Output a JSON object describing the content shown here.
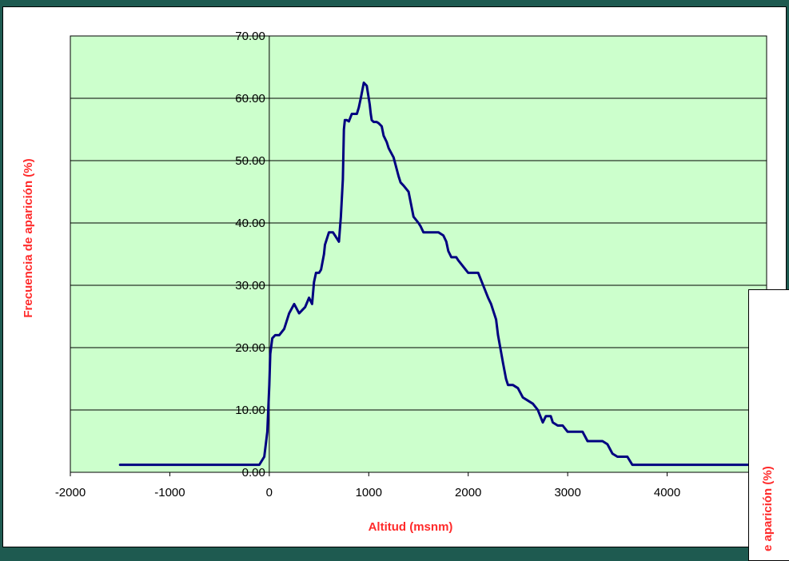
{
  "chart_data": {
    "type": "line",
    "title": "",
    "xlabel": "Altitud (msnm)",
    "ylabel": "Frecuencia de aparición (%)",
    "xlim": [
      -2000,
      5000
    ],
    "ylim": [
      0,
      70
    ],
    "xticks": [
      -2000,
      -1000,
      0,
      1000,
      2000,
      3000,
      4000
    ],
    "xtick_labels": [
      "-2000",
      "-1000",
      "0",
      "1000",
      "2000",
      "3000",
      "4000"
    ],
    "yticks": [
      0,
      10,
      20,
      30,
      40,
      50,
      60,
      70
    ],
    "ytick_labels": [
      "0.00",
      "10.00",
      "20.00",
      "30.00",
      "40.00",
      "50.00",
      "60.00",
      "70.00"
    ],
    "grid": "horizontal",
    "plot_background": "#ccffcc",
    "line_color": "#000080",
    "series": [
      {
        "x": [
          -1500,
          -1000,
          -500,
          -100,
          -50,
          -20,
          0,
          10,
          30,
          60,
          100,
          150,
          200,
          250,
          300,
          330,
          360,
          400,
          430,
          450,
          470,
          500,
          520,
          550,
          560,
          600,
          620,
          640,
          660,
          700,
          720,
          740,
          750,
          760,
          770,
          780,
          800,
          830,
          860,
          880,
          900,
          920,
          950,
          980,
          1000,
          1010,
          1020,
          1030,
          1050,
          1080,
          1100,
          1130,
          1150,
          1180,
          1200,
          1250,
          1300,
          1320,
          1350,
          1400,
          1450,
          1500,
          1520,
          1550,
          1600,
          1650,
          1700,
          1750,
          1780,
          1800,
          1830,
          1850,
          1880,
          1900,
          2000,
          2050,
          2100,
          2150,
          2200,
          2230,
          2250,
          2280,
          2300,
          2350,
          2380,
          2400,
          2450,
          2500,
          2550,
          2600,
          2650,
          2700,
          2750,
          2780,
          2800,
          2830,
          2850,
          2900,
          2950,
          3000,
          3050,
          3100,
          3150,
          3200,
          3300,
          3350,
          3400,
          3450,
          3500,
          3550,
          3600,
          3650,
          3680,
          3700,
          3800,
          4000,
          4500,
          4900
        ],
        "y": [
          1.2,
          1.2,
          1.2,
          1.2,
          2.5,
          6.5,
          14.0,
          19.0,
          21.5,
          22.0,
          22.0,
          23.0,
          25.5,
          27.0,
          25.5,
          26.0,
          26.5,
          28.0,
          27.0,
          30.5,
          32.0,
          32.0,
          32.5,
          35.0,
          36.5,
          38.5,
          38.5,
          38.5,
          38.0,
          37.0,
          41.0,
          47.0,
          55.0,
          56.5,
          56.5,
          56.5,
          56.3,
          57.5,
          57.5,
          57.5,
          58.5,
          60.0,
          62.5,
          62.0,
          60.0,
          59.0,
          57.5,
          56.5,
          56.2,
          56.2,
          56.0,
          55.5,
          54.0,
          53.0,
          52.0,
          50.5,
          47.5,
          46.5,
          46.0,
          45.0,
          41.0,
          40.0,
          39.5,
          38.5,
          38.5,
          38.5,
          38.5,
          38.0,
          37.0,
          35.5,
          34.5,
          34.5,
          34.5,
          34.0,
          32.0,
          32.0,
          32.0,
          30.0,
          28.0,
          27.0,
          26.0,
          24.5,
          22.0,
          17.5,
          15.0,
          14.0,
          14.0,
          13.5,
          12.0,
          11.5,
          11.0,
          10.0,
          8.0,
          9.0,
          9.0,
          9.0,
          8.0,
          7.5,
          7.5,
          6.5,
          6.5,
          6.5,
          6.5,
          5.0,
          5.0,
          5.0,
          4.5,
          3.0,
          2.5,
          2.5,
          2.5,
          1.2,
          1.2,
          1.2,
          1.2,
          1.2,
          1.2,
          1.2
        ]
      }
    ]
  },
  "overlay_chart": {
    "ylabel": "e aparición (%)"
  }
}
